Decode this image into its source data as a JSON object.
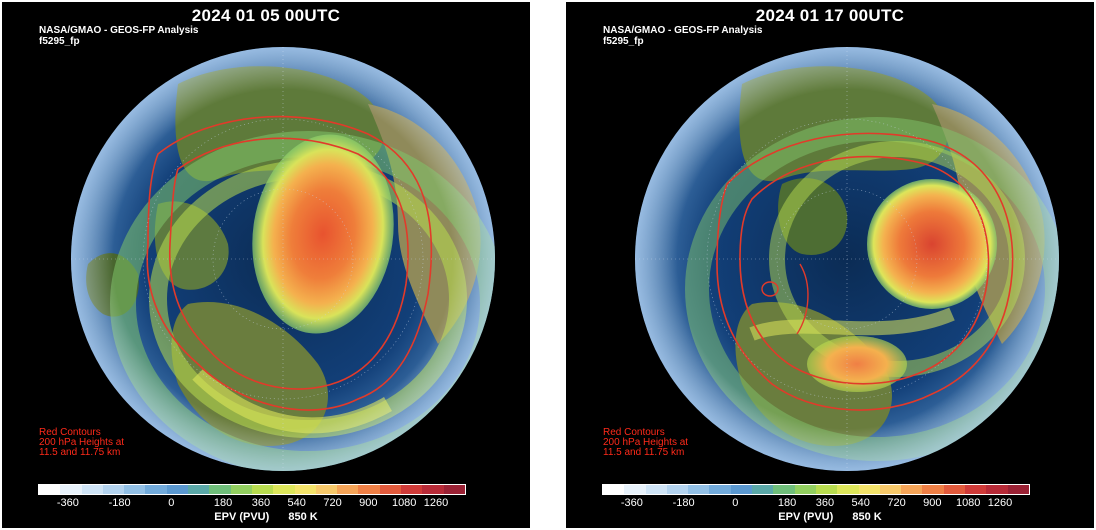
{
  "panels": [
    {
      "title": "2024 01 05 00UTC",
      "subtitle_line1": "NASA/GMAO - GEOS-FP Analysis",
      "subtitle_line2": "f5295_fp",
      "note_lines": [
        "Red Contours",
        "200 hPa Heights at",
        "11.5 and 11.75 km"
      ],
      "vortex_center": "Greenland / northern Canada",
      "vortex_shape": "elongated oval"
    },
    {
      "title": "2024 01 17 00UTC",
      "subtitle_line1": "NASA/GMAO - GEOS-FP Analysis",
      "subtitle_line2": "f5295_fp",
      "note_lines": [
        "Red Contours",
        "200 hPa Heights at",
        "11.5 and 11.75 km"
      ],
      "vortex_center": "Hudson Bay / Canada, with secondary lobe over North America",
      "vortex_shape": "compact circle"
    }
  ],
  "colorbar": {
    "ticks": [
      "-360",
      "-180",
      "0",
      "180",
      "360",
      "540",
      "720",
      "900",
      "1080",
      "1260"
    ],
    "label_variable": "EPV (PVU)",
    "label_level": "850 K",
    "colors": [
      "#ffffff",
      "#e8f2fb",
      "#cfe4f6",
      "#b3d3ef",
      "#92c0e6",
      "#71aadb",
      "#5a98d0",
      "#5aa8a8",
      "#6fbe7a",
      "#92cf5f",
      "#b8dc4f",
      "#dde65a",
      "#f3e36a",
      "#f7c96a",
      "#f5a457",
      "#ef7f45",
      "#e25a3c",
      "#cf3a38",
      "#b72a37",
      "#9a2134"
    ]
  }
}
